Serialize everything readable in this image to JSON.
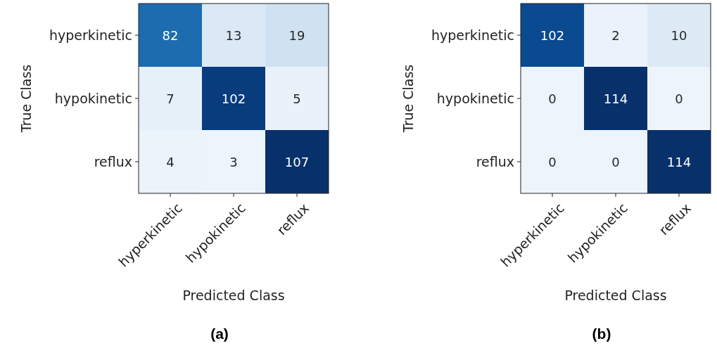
{
  "chart_data": [
    {
      "type": "heatmap",
      "title": "(a)",
      "xlabel": "Predicted Class",
      "ylabel": "True Class",
      "categories": [
        "hyperkinetic",
        "hypokinetic",
        "reflux"
      ],
      "y_categories": [
        "hyperkinetic",
        "hypokinetic",
        "reflux"
      ],
      "cells": [
        [
          82,
          13,
          19
        ],
        [
          7,
          102,
          5
        ],
        [
          4,
          3,
          107
        ]
      ],
      "data_labels": true
    },
    {
      "type": "heatmap",
      "title": "(b)",
      "xlabel": "Predicted Class",
      "ylabel": "True Class",
      "categories": [
        "hyperkinetic",
        "hypokinetic",
        "reflux"
      ],
      "y_categories": [
        "hyperkinetic",
        "hypokinetic",
        "reflux"
      ],
      "cells": [
        [
          102,
          2,
          10
        ],
        [
          0,
          114,
          0
        ],
        [
          0,
          0,
          114
        ]
      ],
      "data_labels": true
    }
  ]
}
